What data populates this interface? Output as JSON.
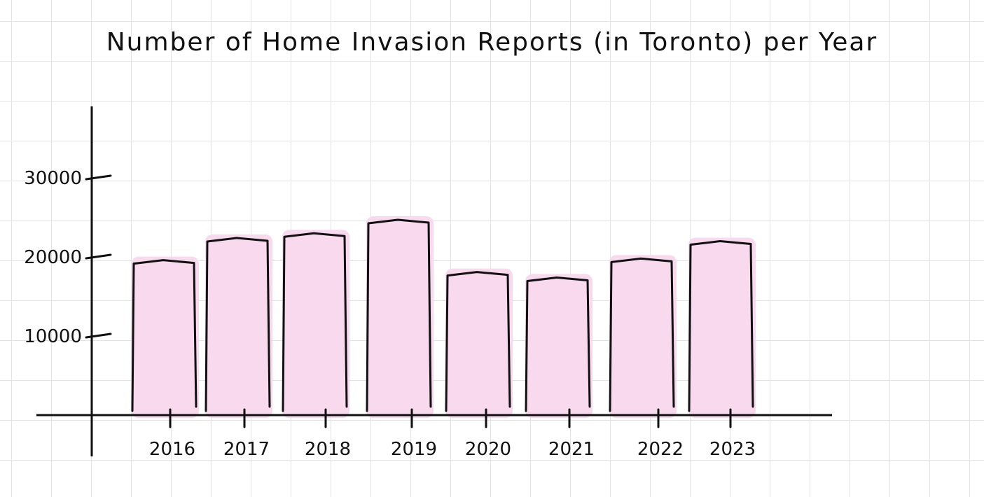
{
  "chart_data": {
    "type": "bar",
    "title": "Number of Home Invasion Reports (in Toronto) per Year",
    "categories": [
      "2016",
      "2017",
      "2018",
      "2019",
      "2020",
      "2021",
      "2022",
      "2023"
    ],
    "values": [
      19500,
      22300,
      22900,
      24600,
      18000,
      17300,
      19700,
      21900
    ],
    "yticks": [
      10000,
      20000,
      30000
    ],
    "ytick_labels": [
      "10000",
      "20000",
      "30000"
    ],
    "ylim": [
      0,
      38000
    ],
    "xlabel": "",
    "ylabel": "",
    "grid": true,
    "colors": {
      "bar_fill": "#f8d9ee",
      "bar_outline": "#111111",
      "axis": "#111111",
      "grid": "#e3e3e3"
    }
  }
}
